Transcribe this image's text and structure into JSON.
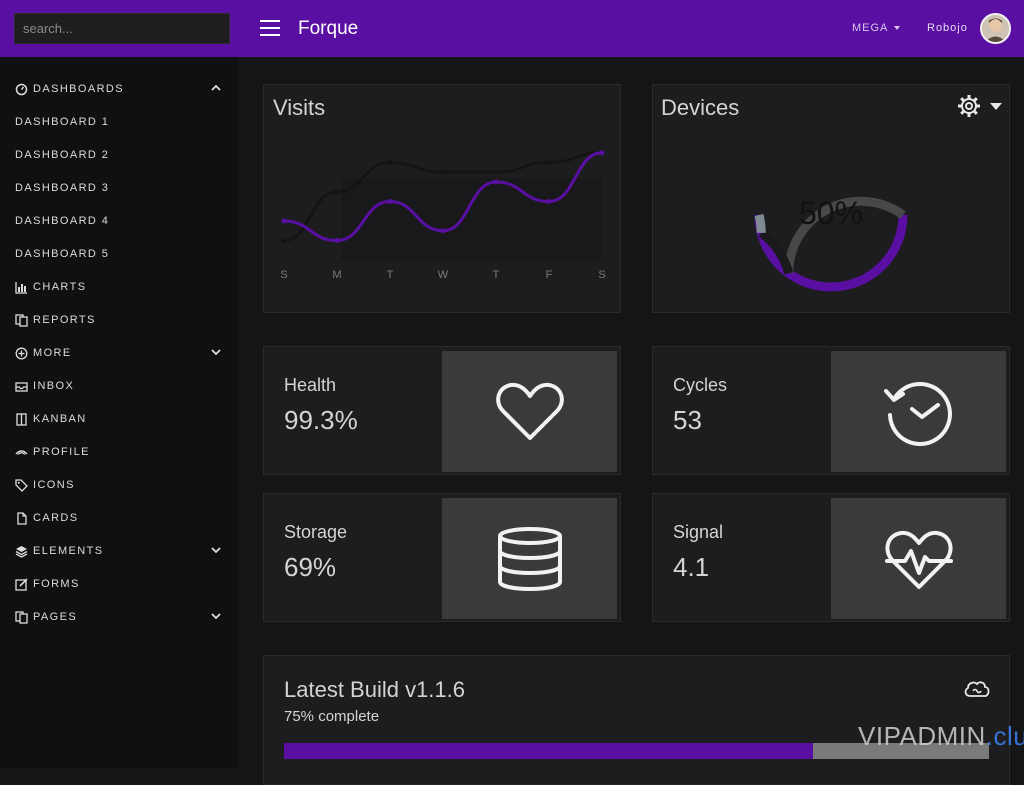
{
  "search": {
    "placeholder": "search..."
  },
  "header": {
    "brand": "Forque",
    "mega_label": "MEGA",
    "user_name": "Robojo"
  },
  "sidebar": {
    "items": [
      {
        "label": "DASHBOARDS",
        "icon": "gauge-icon",
        "chevron": "up"
      },
      {
        "label": "DASHBOARD 1"
      },
      {
        "label": "DASHBOARD 2"
      },
      {
        "label": "DASHBOARD 3"
      },
      {
        "label": "DASHBOARD 4"
      },
      {
        "label": "DASHBOARD 5"
      },
      {
        "label": "CHARTS",
        "icon": "bar-chart-icon"
      },
      {
        "label": "REPORTS",
        "icon": "copy-icon"
      },
      {
        "label": "MORE",
        "icon": "plus-circle-icon",
        "chevron": "down"
      },
      {
        "label": "INBOX",
        "icon": "envelope-icon"
      },
      {
        "label": "KANBAN",
        "icon": "columns-icon"
      },
      {
        "label": "PROFILE",
        "icon": "wave-icon"
      },
      {
        "label": "ICONS",
        "icon": "tags-icon"
      },
      {
        "label": "CARDS",
        "icon": "file-icon"
      },
      {
        "label": "ELEMENTS",
        "icon": "layers-icon",
        "chevron": "down"
      },
      {
        "label": "FORMS",
        "icon": "edit-icon"
      },
      {
        "label": "PAGES",
        "icon": "copy-icon",
        "chevron": "down"
      }
    ]
  },
  "visits": {
    "title": "Visits"
  },
  "devices": {
    "title": "Devices",
    "percent_label": "50%"
  },
  "stats": [
    {
      "label": "Health",
      "value": "99.3%",
      "icon": "heart-icon"
    },
    {
      "label": "Cycles",
      "value": "53",
      "icon": "history-icon"
    },
    {
      "label": "Storage",
      "value": "69%",
      "icon": "database-icon"
    },
    {
      "label": "Signal",
      "value": "4.1",
      "icon": "heartbeat-icon"
    }
  ],
  "build": {
    "title": "Latest Build v1.1.6",
    "subtitle": "75% complete",
    "progress": 0.75,
    "icon": "cloud-icon"
  },
  "watermark": {
    "text": "VIPADMIN",
    "suffix": ".club"
  },
  "colors": {
    "accent": "#5a0fa3",
    "background": "#151517",
    "card": "#1d1d1f",
    "progress_track": "#7a7a7c"
  },
  "chart_data": {
    "type": "line",
    "title": "Visits",
    "categories": [
      "S",
      "M",
      "T",
      "W",
      "T",
      "F",
      "S"
    ],
    "series": [
      {
        "values": [
          2,
          7,
          10,
          9,
          9,
          10,
          11
        ]
      },
      {
        "values": [
          4,
          2,
          6,
          3,
          8,
          6,
          11
        ]
      }
    ],
    "ylim": [
      0,
      12
    ],
    "grid": false
  },
  "devices_chart": {
    "type": "pie",
    "slices": [
      {
        "value": 50,
        "color": "#5a0fa3"
      },
      {
        "value": 35,
        "color": "#48484a"
      },
      {
        "value": 11,
        "color": "#1a1a1c"
      },
      {
        "value": 4,
        "color": "#808a94"
      }
    ]
  }
}
